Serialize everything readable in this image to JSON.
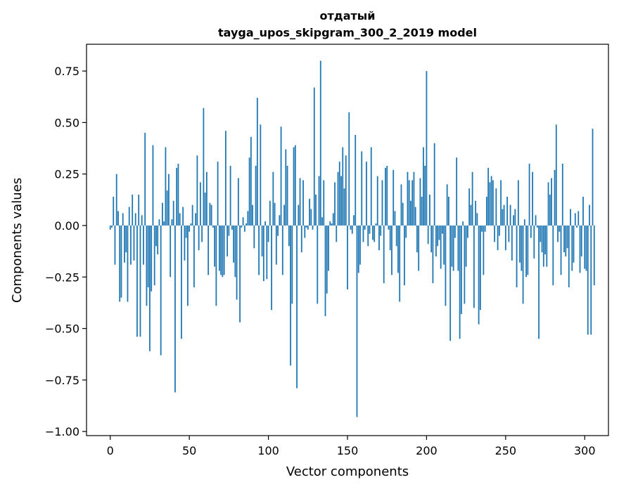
{
  "chart_data": {
    "type": "bar",
    "title_line1": "отдатый",
    "title_line2": "tayga_upos_skipgram_300_2_2019 model",
    "xlabel": "Vector components",
    "ylabel": "Components values",
    "xlim": [
      -15,
      315
    ],
    "ylim": [
      -1.02,
      0.88
    ],
    "x_ticks": [
      0,
      50,
      100,
      150,
      200,
      250,
      300
    ],
    "x_tick_labels": [
      "0",
      "50",
      "100",
      "150",
      "200",
      "250",
      "300"
    ],
    "y_ticks": [
      0.75,
      0.5,
      0.25,
      0.0,
      -0.25,
      -0.5,
      -0.75,
      -1.0
    ],
    "y_tick_labels": [
      "0.75",
      "0.50",
      "0.25",
      "0.00",
      "−0.25",
      "−0.50",
      "−0.75",
      "−1.00"
    ],
    "bar_color": "#1f77b4",
    "grid": false,
    "values": [
      -0.02,
      -0.01,
      0.14,
      -0.19,
      0.25,
      0.07,
      -0.37,
      -0.35,
      0.06,
      -0.18,
      -0.13,
      -0.37,
      0.09,
      -0.19,
      0.15,
      -0.17,
      0.06,
      -0.54,
      0.15,
      -0.54,
      0.05,
      -0.19,
      0.45,
      -0.39,
      -0.3,
      -0.61,
      -0.32,
      0.39,
      -0.29,
      -0.1,
      -0.14,
      0.03,
      -0.63,
      0.11,
      0.02,
      0.38,
      0.17,
      0.25,
      -0.25,
      0.03,
      0.12,
      -0.81,
      0.28,
      0.3,
      0.06,
      -0.55,
      0.09,
      -0.17,
      -0.06,
      -0.39,
      -0.03,
      0.01,
      0.1,
      -0.3,
      0.06,
      0.34,
      -0.12,
      0.21,
      -0.08,
      0.57,
      0.16,
      0.26,
      -0.24,
      0.11,
      0.1,
      -0.01,
      -0.2,
      -0.39,
      0.31,
      -0.22,
      -0.24,
      -0.25,
      -0.24,
      0.46,
      -0.15,
      -0.05,
      0.29,
      -0.02,
      -0.18,
      -0.25,
      -0.36,
      0.23,
      -0.47,
      -0.01,
      0.04,
      -0.03,
      0.01,
      0.07,
      0.33,
      0.43,
      0.1,
      -0.11,
      0.29,
      0.62,
      -0.24,
      0.49,
      -0.15,
      -0.27,
      0.02,
      -0.26,
      -0.08,
      0.12,
      -0.41,
      0.26,
      0.11,
      -0.19,
      -0.05,
      0.05,
      0.48,
      -0.24,
      0.1,
      0.37,
      0.29,
      -0.1,
      -0.68,
      -0.38,
      0.38,
      0.39,
      -0.79,
      0.1,
      0.23,
      -0.13,
      0.22,
      -0.06,
      -0.01,
      -0.02,
      0.13,
      0.08,
      -0.02,
      0.67,
      0.15,
      -0.38,
      0.24,
      0.8,
      0.04,
      0.22,
      -0.44,
      -0.33,
      -0.22,
      0.02,
      0.01,
      0.06,
      0.21,
      -0.08,
      0.26,
      0.31,
      0.24,
      0.38,
      0.18,
      0.34,
      -0.31,
      0.55,
      -0.02,
      -0.04,
      0.05,
      0.44,
      -0.93,
      -0.23,
      -0.19,
      0.36,
      -0.08,
      -0.02,
      0.31,
      -0.1,
      -0.04,
      0.38,
      -0.07,
      -0.08,
      0.01,
      0.24,
      -0.12,
      -0.05,
      0.22,
      -0.28,
      0.28,
      0.29,
      -0.02,
      -0.12,
      -0.24,
      0.27,
      0.07,
      -0.1,
      -0.23,
      -0.37,
      0.2,
      0.11,
      -0.29,
      -0.06,
      0.26,
      0.22,
      0.12,
      0.22,
      0.26,
      0.09,
      -0.13,
      -0.22,
      0.23,
      0.14,
      0.38,
      0.29,
      0.75,
      -0.09,
      0.15,
      -0.13,
      -0.28,
      0.4,
      -0.15,
      -0.1,
      -0.07,
      -0.21,
      -0.04,
      -0.19,
      -0.39,
      0.2,
      0.14,
      -0.56,
      -0.2,
      -0.22,
      -0.06,
      0.33,
      -0.22,
      -0.55,
      -0.43,
      0.02,
      -0.38,
      -0.2,
      -0.06,
      0.18,
      0.1,
      0.26,
      -0.4,
      0.12,
      0.06,
      -0.48,
      -0.41,
      -0.03,
      -0.24,
      -0.03,
      0.14,
      0.28,
      0.21,
      0.24,
      0.22,
      -0.08,
      0.18,
      -0.12,
      -0.05,
      0.22,
      0.08,
      0.1,
      -0.12,
      0.14,
      -0.08,
      0.1,
      -0.17,
      0.05,
      0.08,
      -0.3,
      0.22,
      -0.18,
      -0.22,
      -0.38,
      0.03,
      -0.25,
      -0.24,
      0.3,
      -0.06,
      0.26,
      -0.16,
      0.05,
      -0.01,
      -0.55,
      -0.08,
      -0.13,
      -0.2,
      -0.14,
      -0.2,
      0.21,
      0.15,
      0.23,
      -0.29,
      0.27,
      0.49,
      -0.08,
      -0.03,
      -0.24,
      0.3,
      -0.13,
      -0.15,
      -0.11,
      -0.3,
      0.08,
      -0.22,
      -0.18,
      0.06,
      -0.01,
      0.07,
      -0.23,
      -0.15,
      0.14,
      -0.21,
      -0.22,
      -0.53,
      0.1,
      -0.53,
      0.47,
      -0.29
    ]
  }
}
